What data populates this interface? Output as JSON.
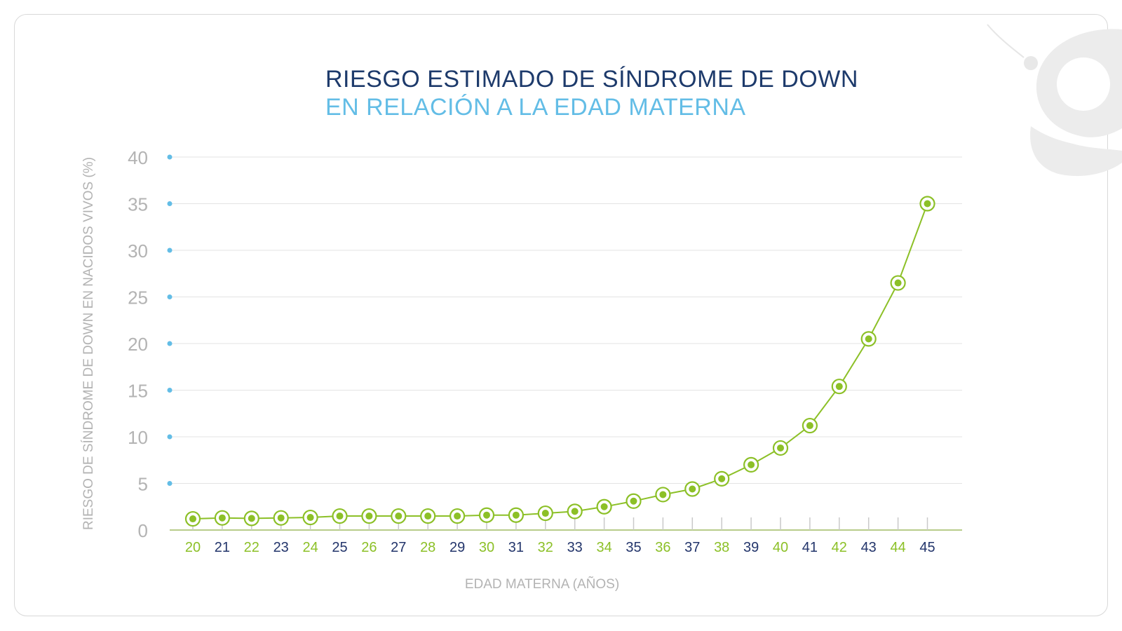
{
  "title": {
    "line1": "RIESGO ESTIMADO DE SÍNDROME DE DOWN",
    "line2": "EN RELACIÓN A LA EDAD MATERNA"
  },
  "logo_icon": "g-watermark-logo",
  "colors": {
    "title_dark": "#1d3a6b",
    "title_light": "#63bde6",
    "series": "#8cc027",
    "axis_text": "#b3b3b3",
    "tick_green": "#8cc027",
    "tick_navy": "#23356b",
    "dot_blue": "#63bde6",
    "grid": "#e3e3e3"
  },
  "chart_data": {
    "type": "line",
    "title": "RIESGO ESTIMADO DE SÍNDROME DE DOWN EN RELACIÓN A LA EDAD MATERNA",
    "xlabel": "EDAD MATERNA (AÑOS)",
    "ylabel": "RIESGO DE SÍNDROME DE DOWN EN NACIDOS VIVOS (%)",
    "ylim": [
      0,
      40
    ],
    "yticks": [
      "0",
      "5",
      "10",
      "15",
      "20",
      "25",
      "30",
      "35",
      "40"
    ],
    "grid": true,
    "x": [
      "20",
      "21",
      "22",
      "23",
      "24",
      "25",
      "26",
      "27",
      "28",
      "29",
      "30",
      "31",
      "32",
      "33",
      "34",
      "35",
      "36",
      "37",
      "38",
      "39",
      "40",
      "41",
      "42",
      "43",
      "44",
      "45"
    ],
    "series": [
      {
        "values": [
          1.2,
          1.3,
          1.25,
          1.3,
          1.35,
          1.5,
          1.5,
          1.5,
          1.5,
          1.5,
          1.6,
          1.6,
          1.8,
          2.0,
          2.5,
          3.1,
          3.8,
          4.4,
          5.5,
          7.0,
          8.8,
          11.2,
          15.4,
          20.5,
          26.5,
          35.0
        ]
      }
    ]
  }
}
